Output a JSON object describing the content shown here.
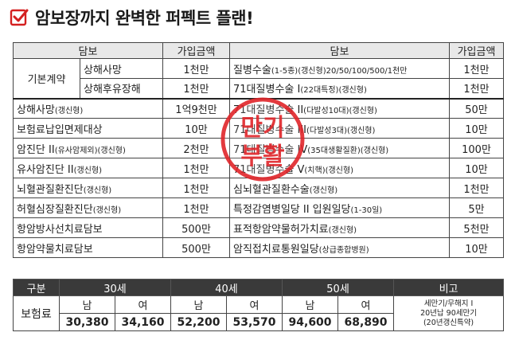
{
  "title": "암보장까지 완벽한 퍼펙트 플랜!",
  "table": {
    "headers": [
      "담보",
      "가입금액",
      "담보",
      "가입금액"
    ],
    "basic_group": "기본계약",
    "rows": [
      {
        "l_name": "상해사망",
        "l_sub": "",
        "l_amt": "1천만",
        "r_name": "질병수술",
        "r_sub": "(1-5종)(갱신형)20/50/100/500/1천만",
        "r_amt": "1천만"
      },
      {
        "l_name": "상해후유장해",
        "l_sub": "",
        "l_amt": "1천만",
        "r_name": "71대질병수술 I",
        "r_sub": "(22대특정)(갱신형)",
        "r_amt": "1천만"
      },
      {
        "l_name": "상해사망",
        "l_sub": "(갱신형)",
        "l_amt": "1억9천만",
        "r_name": "71대질병수술 II",
        "r_sub": "(다발성10대)(갱신형)",
        "r_amt": "50만"
      },
      {
        "l_name": "보험료납입면제대상",
        "l_sub": "",
        "l_amt": "10만",
        "r_name": "71대질병수술 III",
        "r_sub": "(다발성3대)(갱신형)",
        "r_amt": "10만"
      },
      {
        "l_name": "암진단 II",
        "l_sub": "(유사암제외)(갱신형)",
        "l_amt": "2천만",
        "r_name": "71대질병수술 IV",
        "r_sub": "(35대생활질환)(갱신형)",
        "r_amt": "100만"
      },
      {
        "l_name": "유사암진단 II",
        "l_sub": "(갱신형)",
        "l_amt": "1천만",
        "r_name": "71대질병수술 V",
        "r_sub": "(치핵)(갱신형)",
        "r_amt": "10만"
      },
      {
        "l_name": "뇌혈관질환진단",
        "l_sub": "(갱신형)",
        "l_amt": "1천만",
        "r_name": "심뇌혈관질환수술",
        "r_sub": "(갱신형)",
        "r_amt": "1천만"
      },
      {
        "l_name": "허혈심장질환진단",
        "l_sub": "(갱신형)",
        "l_amt": "1천만",
        "r_name": "특정감염병일당 II 입원일당",
        "r_sub": "(1-30일)",
        "r_amt": "5만"
      },
      {
        "l_name": "항암방사선치료담보",
        "l_sub": "",
        "l_amt": "500만",
        "r_name": "표적항암약물허가치료",
        "r_sub": "(갱신형)",
        "r_amt": "5천만"
      },
      {
        "l_name": "항암약물치료담보",
        "l_sub": "",
        "l_amt": "500만",
        "r_name": "암직접치료통원일당",
        "r_sub": "(상급종합병원)",
        "r_amt": "10만"
      }
    ]
  },
  "stamp": {
    "line1": "만기",
    "line2": "부활",
    "color": "#e0252a"
  },
  "premium": {
    "headers": [
      "구분",
      "30세",
      "40세",
      "50세",
      "비고"
    ],
    "row_label": "보험료",
    "genders": [
      "남",
      "여",
      "남",
      "여",
      "남",
      "여"
    ],
    "values": [
      "30,380",
      "34,160",
      "52,200",
      "53,570",
      "94,600",
      "68,890"
    ],
    "note_lines": [
      "세만기/무해지 I",
      "20년납 90세만기",
      "(20년갱신특약)"
    ]
  }
}
